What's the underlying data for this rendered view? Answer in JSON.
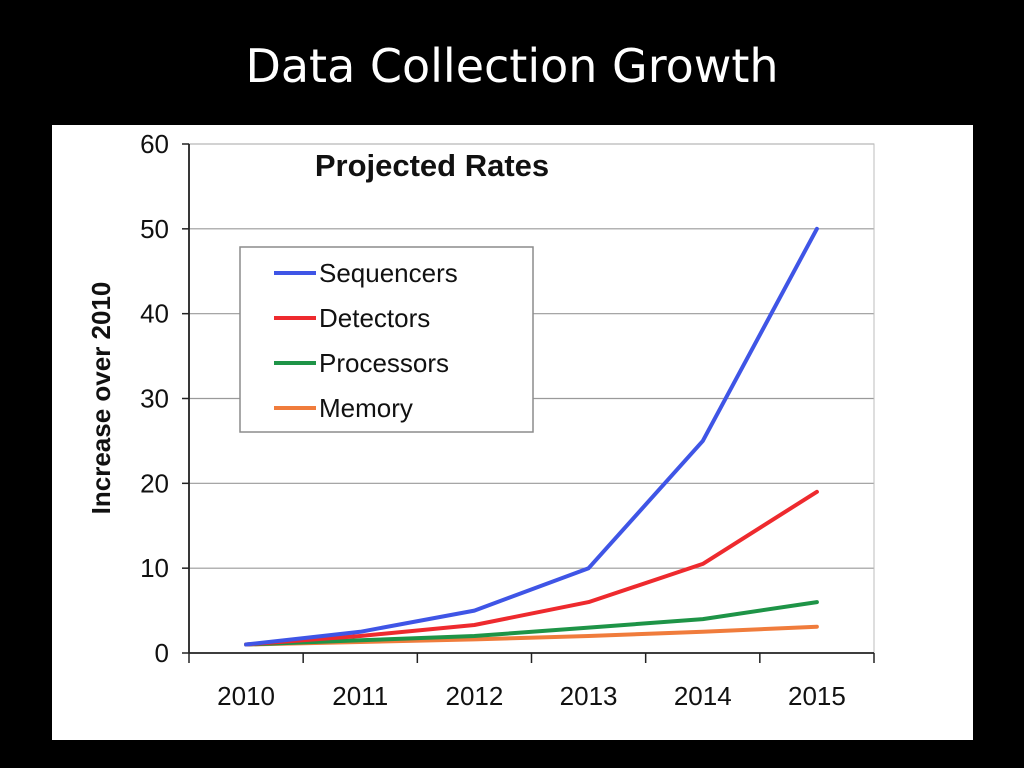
{
  "slide": {
    "title": "Data Collection Growth"
  },
  "chart_data": {
    "type": "line",
    "title": "Projected Rates",
    "xlabel": "",
    "ylabel": "Increase over 2010",
    "categories": [
      "2010",
      "2011",
      "2012",
      "2013",
      "2014",
      "2015"
    ],
    "ylim": [
      0,
      60
    ],
    "yticks": [
      0,
      10,
      20,
      30,
      40,
      50,
      60
    ],
    "grid": true,
    "legend_position": "upper-left",
    "series": [
      {
        "name": "Sequencers",
        "color": "#3f55e6",
        "values": [
          1,
          2.5,
          5,
          10,
          25,
          50
        ]
      },
      {
        "name": "Detectors",
        "color": "#ee2a2e",
        "values": [
          1,
          2,
          3.3,
          6,
          10.5,
          19
        ]
      },
      {
        "name": "Processors",
        "color": "#1e9447",
        "values": [
          1,
          1.5,
          2,
          3,
          4,
          6
        ]
      },
      {
        "name": "Memory",
        "color": "#f07c3c",
        "values": [
          1,
          1.3,
          1.6,
          2,
          2.5,
          3.1
        ]
      }
    ]
  }
}
